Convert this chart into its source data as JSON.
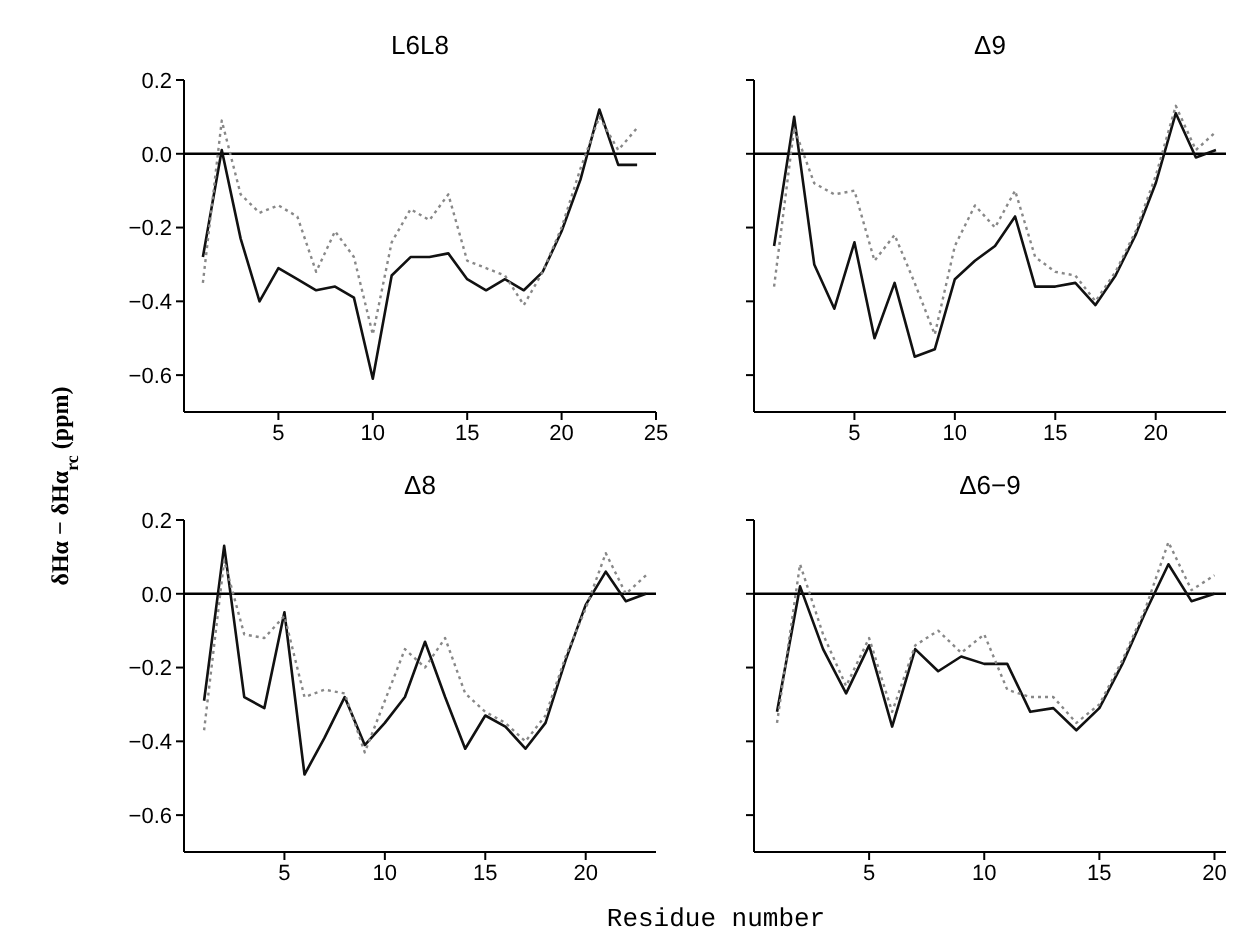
{
  "chart_data": [
    {
      "type": "line",
      "title": "L6L8",
      "ylabel": "δHα − δHα$_{rc}$ (ppm)",
      "x": [
        1,
        2,
        3,
        4,
        5,
        6,
        7,
        8,
        9,
        10,
        11,
        12,
        13,
        14,
        15,
        16,
        17,
        18,
        19,
        20,
        21,
        22,
        23,
        24
      ],
      "xlim": [
        0,
        25
      ],
      "xticks": [
        5,
        10,
        15,
        20,
        25
      ],
      "ylim": [
        -0.7,
        0.2
      ],
      "yticks": [
        {
          "value": -0.6,
          "label": "−0.6"
        },
        {
          "value": -0.4,
          "label": "−0.4"
        },
        {
          "value": -0.2,
          "label": "−0.2"
        },
        {
          "value": 0,
          "label": "0.0"
        },
        0.2
      ],
      "ref_lines": [
        {
          "axis": "y",
          "value": 0,
          "color": "#000000"
        }
      ],
      "series": [
        {
          "color": "#111111",
          "line_style": "solid",
          "values": [
            -0.28,
            0.01,
            -0.23,
            -0.4,
            -0.31,
            -0.34,
            -0.37,
            -0.36,
            -0.39,
            -0.61,
            -0.33,
            -0.28,
            -0.28,
            -0.27,
            -0.34,
            -0.37,
            -0.34,
            -0.37,
            -0.32,
            -0.21,
            -0.07,
            0.12,
            -0.03,
            -0.03
          ]
        },
        {
          "color": "#888888",
          "line_style": "dotted",
          "values": [
            -0.35,
            0.09,
            -0.11,
            -0.16,
            -0.14,
            -0.17,
            -0.32,
            -0.21,
            -0.28,
            -0.49,
            -0.24,
            -0.15,
            -0.18,
            -0.11,
            -0.29,
            -0.31,
            -0.33,
            -0.41,
            -0.32,
            -0.2,
            -0.04,
            0.1,
            0.01,
            0.07
          ]
        }
      ]
    },
    {
      "type": "line",
      "title": "Δ9",
      "tick_labels": "x",
      "x": [
        1,
        2,
        3,
        4,
        5,
        6,
        7,
        8,
        9,
        10,
        11,
        12,
        13,
        14,
        15,
        16,
        17,
        18,
        19,
        20,
        21,
        22,
        23
      ],
      "xlim": [
        0,
        23.5
      ],
      "xticks": [
        5,
        10,
        15,
        20
      ],
      "ylim": [
        -0.7,
        0.2
      ],
      "yticks": [
        {
          "value": -0.6,
          "label": null
        },
        {
          "value": -0.4,
          "label": null
        },
        {
          "value": -0.2,
          "label": null
        },
        {
          "value": 0,
          "label": null
        },
        {
          "value": 0.2,
          "label": null
        }
      ],
      "ref_lines": [
        {
          "axis": "y",
          "value": 0,
          "color": "#000000"
        }
      ],
      "series": [
        {
          "color": "#111111",
          "line_style": "solid",
          "values": [
            -0.25,
            0.1,
            -0.3,
            -0.42,
            -0.24,
            -0.5,
            -0.35,
            -0.55,
            -0.53,
            -0.34,
            -0.29,
            -0.25,
            -0.17,
            -0.36,
            -0.36,
            -0.35,
            -0.41,
            -0.33,
            -0.22,
            -0.08,
            0.11,
            -0.01,
            0.01
          ]
        },
        {
          "color": "#888888",
          "line_style": "dotted",
          "values": [
            -0.36,
            0.07,
            -0.08,
            -0.11,
            -0.1,
            -0.29,
            -0.22,
            -0.35,
            -0.49,
            -0.25,
            -0.14,
            -0.2,
            -0.1,
            -0.28,
            -0.32,
            -0.33,
            -0.4,
            -0.32,
            -0.21,
            -0.06,
            0.13,
            0.01,
            0.06
          ]
        }
      ]
    },
    {
      "type": "line",
      "title": "Δ8",
      "x": [
        1,
        2,
        3,
        4,
        5,
        6,
        7,
        8,
        9,
        10,
        11,
        12,
        13,
        14,
        15,
        16,
        17,
        18,
        19,
        20,
        21,
        22,
        23
      ],
      "xlim": [
        0,
        23.5
      ],
      "xticks": [
        5,
        10,
        15,
        20
      ],
      "ylim": [
        -0.7,
        0.2
      ],
      "yticks": [
        {
          "value": -0.6,
          "label": "−0.6"
        },
        {
          "value": -0.4,
          "label": "−0.4"
        },
        {
          "value": -0.2,
          "label": "−0.2"
        },
        {
          "value": 0,
          "label": "0.0"
        },
        0.2
      ],
      "ref_lines": [
        {
          "axis": "y",
          "value": 0,
          "color": "#000000"
        }
      ],
      "series": [
        {
          "color": "#111111",
          "line_style": "solid",
          "values": [
            -0.29,
            0.13,
            -0.28,
            -0.31,
            -0.05,
            -0.49,
            -0.39,
            -0.28,
            -0.41,
            -0.35,
            -0.28,
            -0.13,
            -0.28,
            -0.42,
            -0.33,
            -0.36,
            -0.42,
            -0.35,
            -0.18,
            -0.03,
            0.06,
            -0.02,
            0.0
          ]
        },
        {
          "color": "#888888",
          "line_style": "dotted",
          "values": [
            -0.37,
            0.09,
            -0.11,
            -0.12,
            -0.06,
            -0.28,
            -0.26,
            -0.27,
            -0.43,
            -0.29,
            -0.15,
            -0.2,
            -0.12,
            -0.27,
            -0.32,
            -0.35,
            -0.4,
            -0.33,
            -0.17,
            -0.04,
            0.11,
            0.0,
            0.05
          ]
        }
      ]
    },
    {
      "type": "line",
      "title": "Δ6−9",
      "xlabel": "Residue number",
      "tick_labels": "x",
      "x": [
        1,
        2,
        3,
        4,
        5,
        6,
        7,
        8,
        9,
        10,
        11,
        12,
        13,
        14,
        15,
        16,
        17,
        18,
        19,
        20
      ],
      "xlim": [
        0,
        20.5
      ],
      "xticks": [
        5,
        10,
        15,
        20
      ],
      "ylim": [
        -0.7,
        0.2
      ],
      "yticks": [
        {
          "value": -0.6,
          "label": null
        },
        {
          "value": -0.4,
          "label": null
        },
        {
          "value": -0.2,
          "label": null
        },
        {
          "value": 0,
          "label": null
        },
        {
          "value": 0.2,
          "label": null
        }
      ],
      "ref_lines": [
        {
          "axis": "y",
          "value": 0,
          "color": "#000000"
        }
      ],
      "series": [
        {
          "color": "#111111",
          "line_style": "solid",
          "values": [
            -0.32,
            0.02,
            -0.15,
            -0.27,
            -0.14,
            -0.36,
            -0.15,
            -0.21,
            -0.17,
            -0.19,
            -0.19,
            -0.32,
            -0.31,
            -0.37,
            -0.31,
            -0.19,
            -0.05,
            0.08,
            -0.02,
            0.0
          ]
        },
        {
          "color": "#888888",
          "line_style": "dotted",
          "values": [
            -0.35,
            0.08,
            -0.11,
            -0.25,
            -0.12,
            -0.32,
            -0.14,
            -0.1,
            -0.16,
            -0.11,
            -0.26,
            -0.28,
            -0.28,
            -0.35,
            -0.3,
            -0.18,
            -0.04,
            0.14,
            0.01,
            0.05
          ]
        }
      ]
    }
  ]
}
